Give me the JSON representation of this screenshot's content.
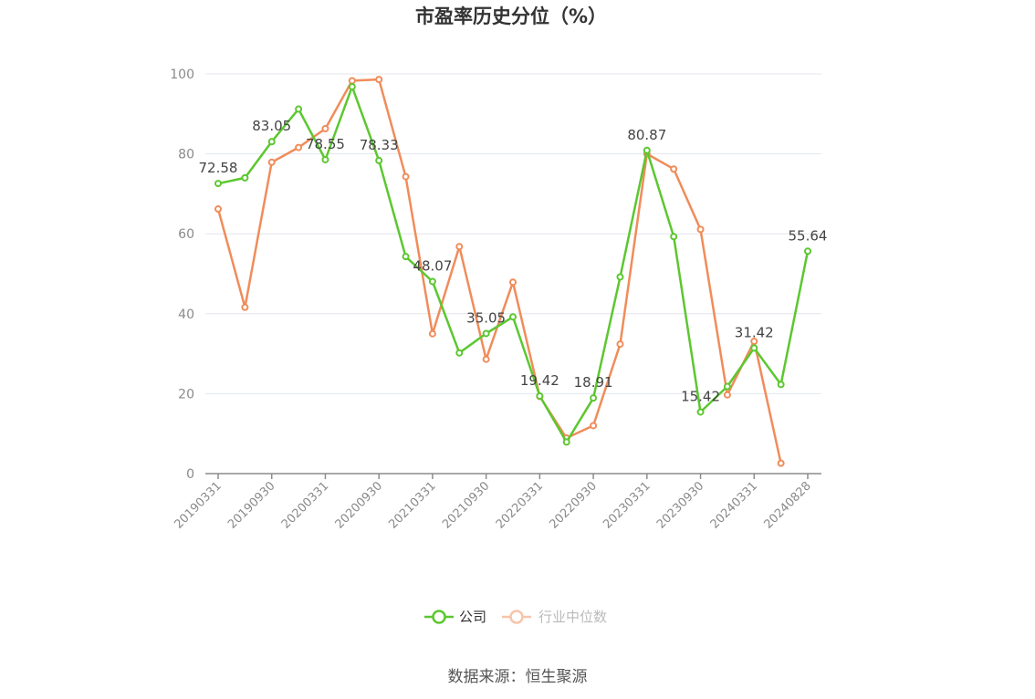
{
  "chart_data": {
    "type": "line",
    "title": "市盈率历史分位（%）",
    "source": "数据来源：恒生聚源",
    "ylim": [
      0,
      100
    ],
    "yticks": [
      0,
      20,
      40,
      60,
      80,
      100
    ],
    "x_tick_labels": [
      "20190331",
      "20190930",
      "20200331",
      "20200930",
      "20210331",
      "20210930",
      "20220331",
      "20220930",
      "20230331",
      "20230930",
      "20240331",
      "20240828"
    ],
    "x": [
      "20190331",
      "20190630",
      "20190930",
      "20191231",
      "20200331",
      "20200630",
      "20200930",
      "20201231",
      "20210331",
      "20210630",
      "20210930",
      "20211231",
      "20220331",
      "20220630",
      "20220930",
      "20221231",
      "20230331",
      "20230630",
      "20230930",
      "20231231",
      "20240331",
      "20240630",
      "20240828"
    ],
    "grid": true,
    "legend_position": "bottom",
    "series": [
      {
        "name": "公司",
        "color": "#5cc730",
        "values": [
          72.58,
          74.0,
          83.05,
          91.2,
          78.55,
          96.8,
          78.33,
          54.3,
          48.07,
          30.2,
          35.05,
          39.2,
          19.42,
          7.9,
          18.91,
          49.2,
          80.87,
          59.3,
          15.42,
          21.8,
          31.42,
          22.3,
          55.64
        ],
        "labels": [
          "72.58",
          "",
          "83.05",
          "",
          "78.55",
          "",
          "78.33",
          "",
          "48.07",
          "",
          "35.05",
          "",
          "19.42",
          "",
          "18.91",
          "",
          "80.87",
          "",
          "15.42",
          "",
          "31.42",
          "",
          "55.64"
        ]
      },
      {
        "name": "行业中位数",
        "color": "#f08c5a",
        "values": [
          66.2,
          41.6,
          77.9,
          81.6,
          86.3,
          98.3,
          98.6,
          74.3,
          35.0,
          56.8,
          28.6,
          47.9,
          19.3,
          8.9,
          12.0,
          32.4,
          80.0,
          76.2,
          61.1,
          19.7,
          33.1,
          2.6,
          null
        ]
      }
    ]
  }
}
